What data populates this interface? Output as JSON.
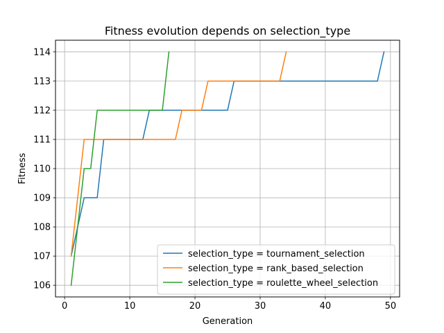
{
  "chart_data": {
    "type": "line",
    "title": "Fitness evolution depends on selection_type",
    "xlabel": "Generation",
    "ylabel": "Fitness",
    "xlim": [
      -1.4,
      51.4
    ],
    "ylim": [
      105.6,
      114.4
    ],
    "xticks": [
      0,
      10,
      20,
      30,
      40,
      50
    ],
    "yticks": [
      106,
      107,
      108,
      109,
      110,
      111,
      112,
      113,
      114
    ],
    "grid": true,
    "legend_position": "lower-right",
    "series": [
      {
        "name": "selection_type = tournament_selection",
        "color": "#1f77b4",
        "x": [
          1,
          2,
          3,
          4,
          5,
          6,
          7,
          8,
          9,
          10,
          11,
          12,
          13,
          14,
          15,
          16,
          17,
          18,
          19,
          20,
          21,
          22,
          23,
          24,
          25,
          26,
          27,
          28,
          29,
          30,
          31,
          32,
          33,
          34,
          35,
          36,
          37,
          38,
          39,
          40,
          41,
          42,
          43,
          44,
          45,
          46,
          47,
          48,
          49
        ],
        "y": [
          107,
          108,
          109,
          109,
          109,
          111,
          111,
          111,
          111,
          111,
          111,
          111,
          112,
          112,
          112,
          112,
          112,
          112,
          112,
          112,
          112,
          112,
          112,
          112,
          112,
          113,
          113,
          113,
          113,
          113,
          113,
          113,
          113,
          113,
          113,
          113,
          113,
          113,
          113,
          113,
          113,
          113,
          113,
          113,
          113,
          113,
          113,
          113,
          114
        ]
      },
      {
        "name": "selection_type = rank_based_selection",
        "color": "#ff7f0e",
        "x": [
          1,
          2,
          3,
          4,
          5,
          6,
          7,
          8,
          9,
          10,
          11,
          12,
          13,
          14,
          15,
          16,
          17,
          18,
          19,
          20,
          21,
          22,
          23,
          24,
          25,
          26,
          27,
          28,
          29,
          30,
          31,
          32,
          33,
          34
        ],
        "y": [
          107,
          109,
          111,
          111,
          111,
          111,
          111,
          111,
          111,
          111,
          111,
          111,
          111,
          111,
          111,
          111,
          111,
          112,
          112,
          112,
          112,
          113,
          113,
          113,
          113,
          113,
          113,
          113,
          113,
          113,
          113,
          113,
          113,
          114
        ]
      },
      {
        "name": "selection_type = roulette_wheel_selection",
        "color": "#2ca02c",
        "x": [
          1,
          2,
          3,
          4,
          5,
          6,
          7,
          8,
          9,
          10,
          11,
          12,
          13,
          14,
          15,
          16
        ],
        "y": [
          106,
          108,
          110,
          110,
          112,
          112,
          112,
          112,
          112,
          112,
          112,
          112,
          112,
          112,
          112,
          114
        ]
      }
    ]
  }
}
